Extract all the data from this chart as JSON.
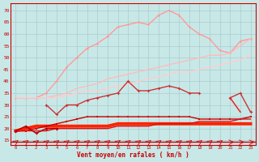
{
  "background_color": "#c8e8e8",
  "grid_color": "#aacccc",
  "xlabel": "Vent moyen/en rafales ( km/h )",
  "ylim": [
    13,
    73
  ],
  "yticks": [
    15,
    20,
    25,
    30,
    35,
    40,
    45,
    50,
    55,
    60,
    65,
    70
  ],
  "x_values": [
    0,
    1,
    2,
    3,
    4,
    5,
    6,
    7,
    8,
    9,
    10,
    11,
    12,
    13,
    14,
    15,
    16,
    17,
    18,
    19,
    20,
    21,
    22,
    23
  ],
  "series": [
    {
      "color": "#ff9999",
      "lw": 1.0,
      "marker": "o",
      "markersize": 1.8,
      "y": [
        33,
        33,
        33,
        35,
        40,
        46,
        50,
        54,
        56,
        59,
        63,
        64,
        65,
        64,
        68,
        70,
        68,
        63,
        60,
        58,
        53,
        52,
        57,
        58
      ]
    },
    {
      "color": "#ffbbbb",
      "lw": 1.0,
      "marker": null,
      "y": [
        33,
        33,
        33,
        33,
        34,
        35,
        37,
        38,
        39,
        41,
        42,
        43,
        44,
        45,
        46,
        47,
        48,
        49,
        50,
        51,
        51,
        52,
        55,
        58
      ]
    },
    {
      "color": "#ffcccc",
      "lw": 1.0,
      "marker": null,
      "y": [
        33,
        33,
        33,
        33,
        33,
        34,
        35,
        36,
        36,
        37,
        38,
        39,
        40,
        41,
        42,
        43,
        44,
        44,
        45,
        46,
        47,
        48,
        49,
        51
      ]
    },
    {
      "color": "#cc3333",
      "lw": 1.0,
      "marker": "P",
      "markersize": 2.5,
      "y": [
        null,
        null,
        null,
        30,
        26,
        30,
        30,
        32,
        33,
        34,
        35,
        40,
        36,
        36,
        37,
        38,
        37,
        35,
        35,
        null,
        null,
        33,
        35,
        27
      ]
    },
    {
      "color": "#ff2200",
      "lw": 2.8,
      "marker": null,
      "y": [
        19,
        20,
        21,
        21,
        21,
        21,
        21,
        21,
        21,
        21,
        22,
        22,
        22,
        22,
        22,
        22,
        22,
        22,
        22,
        22,
        22,
        22,
        22,
        22
      ]
    },
    {
      "color": "#cc0000",
      "lw": 1.0,
      "marker": "s",
      "markersize": 1.8,
      "y": [
        19,
        19,
        20,
        21,
        22,
        23,
        24,
        25,
        25,
        25,
        25,
        25,
        25,
        25,
        25,
        25,
        25,
        25,
        24,
        24,
        24,
        24,
        24,
        25
      ]
    },
    {
      "color": "#dd1111",
      "lw": 1.0,
      "marker": null,
      "y": [
        19,
        19,
        19,
        19,
        20,
        20,
        20,
        20,
        20,
        20,
        21,
        21,
        21,
        21,
        22,
        22,
        22,
        22,
        23,
        23,
        23,
        23,
        24,
        24
      ]
    },
    {
      "color": "#bb0000",
      "lw": 1.1,
      "marker": "D",
      "markersize": 2.0,
      "y": [
        19,
        21,
        18,
        20,
        20,
        null,
        null,
        null,
        null,
        null,
        null,
        null,
        null,
        null,
        null,
        null,
        null,
        null,
        null,
        null,
        null,
        null,
        null,
        null
      ]
    },
    {
      "color": "#ee2222",
      "lw": 1.1,
      "marker": null,
      "y": [
        null,
        null,
        null,
        null,
        null,
        null,
        null,
        null,
        null,
        null,
        null,
        null,
        null,
        null,
        null,
        null,
        null,
        null,
        null,
        null,
        null,
        33,
        27,
        null
      ]
    }
  ]
}
